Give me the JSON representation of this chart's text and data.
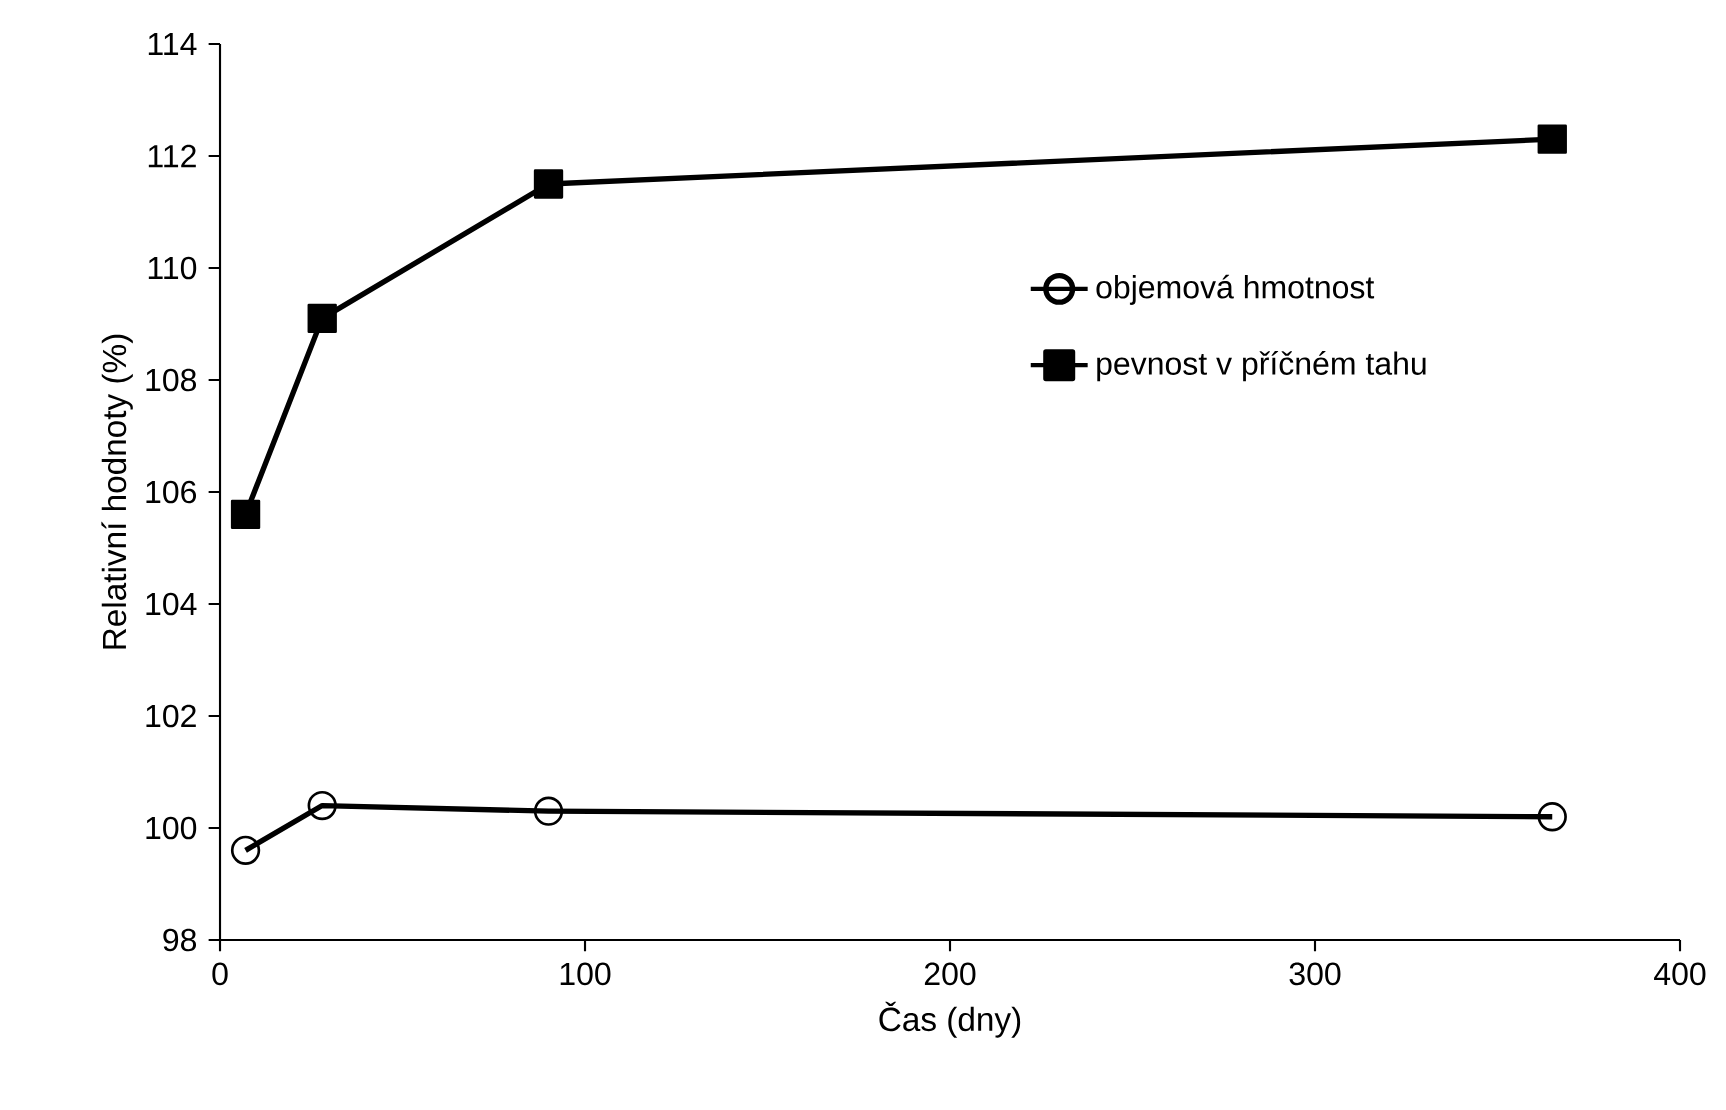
{
  "chart_data": {
    "type": "line",
    "xlabel": "Čas (dny)",
    "ylabel": "Relativní hodnoty (%)",
    "xlim": [
      0,
      400
    ],
    "xticks": [
      0,
      100,
      200,
      300,
      400
    ],
    "ylim": [
      98,
      114
    ],
    "yticks": [
      98,
      100,
      102,
      104,
      106,
      108,
      110,
      112,
      114
    ],
    "x": [
      7,
      28,
      90,
      365
    ],
    "series": [
      {
        "name": "objemová hmotnost",
        "color": "#000000",
        "marker": "circle",
        "values": [
          99.6,
          100.4,
          100.3,
          100.2
        ]
      },
      {
        "name": "pevnost v příčném tahu",
        "color": "#000000",
        "marker": "square",
        "values": [
          105.6,
          109.1,
          111.5,
          112.3
        ]
      }
    ],
    "grid": false,
    "legend": "right",
    "line_style": "solid"
  }
}
